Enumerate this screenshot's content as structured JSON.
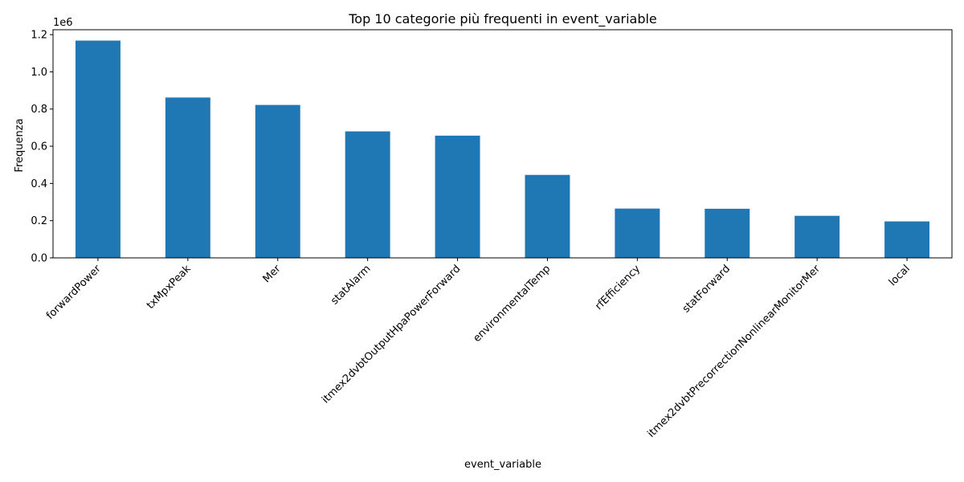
{
  "chart_data": {
    "type": "bar",
    "title": "Top 10 categorie più frequenti in event_variable",
    "xlabel": "event_variable",
    "ylabel": "Frequenza",
    "offset_label": "1e6",
    "categories": [
      "forwardPower",
      "txMpxPeak",
      "Mer",
      "statAlarm",
      "itmex2dvbtOutputHpaPowerForward",
      "environmentalTemp",
      "rfEfficiency",
      "statForward",
      "itmex2dvbtPrecorrectionNonlinearMonitorMer",
      "local"
    ],
    "values": [
      1168000,
      862000,
      822000,
      680000,
      657000,
      446000,
      265000,
      264000,
      226000,
      196000
    ],
    "yticks": [
      0.0,
      0.2,
      0.4,
      0.6,
      0.8,
      1.0,
      1.2
    ],
    "ytick_labels": [
      "0.0",
      "0.2",
      "0.4",
      "0.6",
      "0.8",
      "1.0",
      "1.2"
    ],
    "ylim": [
      0,
      1226400
    ],
    "bar_color": "#1f77b4",
    "grid": false,
    "legend": "none"
  }
}
